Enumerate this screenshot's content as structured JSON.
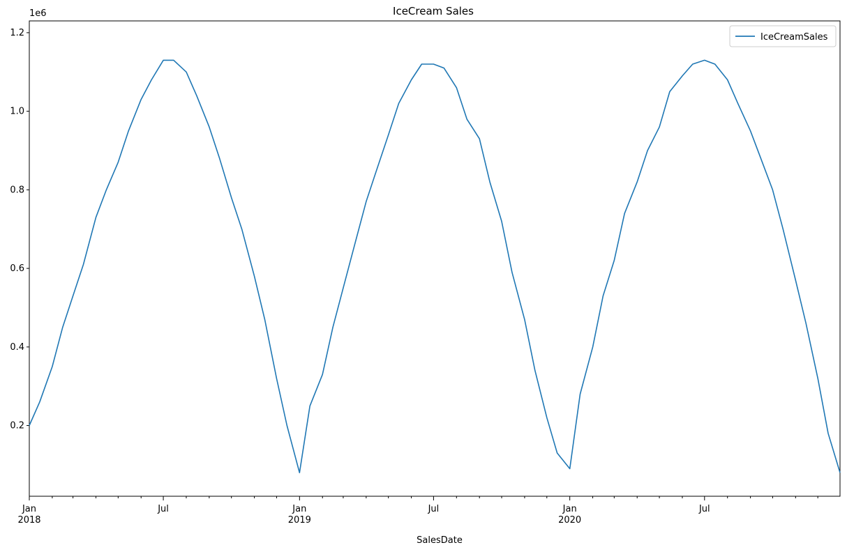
{
  "chart_data": {
    "type": "line",
    "title": "IceCream Sales",
    "xlabel": "SalesDate",
    "ylabel": "",
    "y_scale_label": "1e6",
    "x_range": [
      "2018-01-01",
      "2020-12-31"
    ],
    "ylim": [
      0.02,
      1.23
    ],
    "y_ticks": [
      0.2,
      0.4,
      0.6,
      0.8,
      1.0,
      1.2
    ],
    "y_tick_labels": [
      "0.2",
      "0.4",
      "0.6",
      "0.8",
      "1.0",
      "1.2"
    ],
    "x_major_ticks": [
      {
        "date": "2018-01-01",
        "label": "Jan",
        "sublabel": "2018"
      },
      {
        "date": "2018-07-01",
        "label": "Jul",
        "sublabel": ""
      },
      {
        "date": "2019-01-01",
        "label": "Jan",
        "sublabel": "2019"
      },
      {
        "date": "2019-07-01",
        "label": "Jul",
        "sublabel": ""
      },
      {
        "date": "2020-01-01",
        "label": "Jan",
        "sublabel": "2020"
      },
      {
        "date": "2020-07-01",
        "label": "Jul",
        "sublabel": ""
      }
    ],
    "x_minor_ticks": [
      "2018-02-01",
      "2018-03-01",
      "2018-04-01",
      "2018-05-01",
      "2018-06-01",
      "2018-08-01",
      "2018-09-01",
      "2018-10-01",
      "2018-11-01",
      "2018-12-01",
      "2019-02-01",
      "2019-03-01",
      "2019-04-01",
      "2019-05-01",
      "2019-06-01",
      "2019-08-01",
      "2019-09-01",
      "2019-10-01",
      "2019-11-01",
      "2019-12-01",
      "2020-02-01",
      "2020-03-01",
      "2020-04-01",
      "2020-05-01",
      "2020-06-01",
      "2020-08-01",
      "2020-09-01",
      "2020-10-01",
      "2020-11-01",
      "2020-12-01"
    ],
    "legend": {
      "placement": "top-right"
    },
    "grid": false,
    "colors": {
      "series": "#1f77b4",
      "axes": "#000000"
    },
    "series": [
      {
        "name": "IceCreamSales",
        "x": [
          "2018-01-01",
          "2018-01-15",
          "2018-02-01",
          "2018-02-15",
          "2018-03-01",
          "2018-03-15",
          "2018-04-01",
          "2018-04-15",
          "2018-05-01",
          "2018-05-15",
          "2018-06-01",
          "2018-06-15",
          "2018-07-01",
          "2018-07-15",
          "2018-08-01",
          "2018-08-15",
          "2018-09-01",
          "2018-09-15",
          "2018-10-01",
          "2018-10-15",
          "2018-11-01",
          "2018-11-15",
          "2018-12-01",
          "2018-12-15",
          "2019-01-01",
          "2019-01-15",
          "2019-02-01",
          "2019-02-15",
          "2019-03-01",
          "2019-03-15",
          "2019-04-01",
          "2019-04-15",
          "2019-05-01",
          "2019-05-15",
          "2019-06-01",
          "2019-06-15",
          "2019-07-01",
          "2019-07-15",
          "2019-08-01",
          "2019-08-15",
          "2019-09-01",
          "2019-09-15",
          "2019-10-01",
          "2019-10-15",
          "2019-11-01",
          "2019-11-15",
          "2019-12-01",
          "2019-12-15",
          "2020-01-01",
          "2020-01-15",
          "2020-02-01",
          "2020-02-15",
          "2020-03-01",
          "2020-03-15",
          "2020-04-01",
          "2020-04-15",
          "2020-05-01",
          "2020-05-15",
          "2020-06-01",
          "2020-06-15",
          "2020-07-01",
          "2020-07-15",
          "2020-08-01",
          "2020-08-15",
          "2020-09-01",
          "2020-09-15",
          "2020-10-01",
          "2020-10-15",
          "2020-11-01",
          "2020-11-15",
          "2020-12-01",
          "2020-12-15",
          "2020-12-31"
        ],
        "y": [
          0.2,
          0.26,
          0.35,
          0.45,
          0.53,
          0.61,
          0.73,
          0.8,
          0.87,
          0.95,
          1.03,
          1.08,
          1.13,
          1.13,
          1.1,
          1.04,
          0.96,
          0.88,
          0.78,
          0.7,
          0.58,
          0.47,
          0.32,
          0.2,
          0.08,
          0.25,
          0.33,
          0.45,
          0.55,
          0.65,
          0.77,
          0.85,
          0.94,
          1.02,
          1.08,
          1.12,
          1.12,
          1.11,
          1.06,
          0.98,
          0.93,
          0.82,
          0.72,
          0.59,
          0.47,
          0.34,
          0.22,
          0.13,
          0.09,
          0.28,
          0.4,
          0.53,
          0.62,
          0.74,
          0.82,
          0.9,
          0.96,
          1.05,
          1.09,
          1.12,
          1.13,
          1.12,
          1.08,
          1.02,
          0.95,
          0.88,
          0.8,
          0.7,
          0.57,
          0.46,
          0.32,
          0.18,
          0.08
        ]
      }
    ]
  }
}
